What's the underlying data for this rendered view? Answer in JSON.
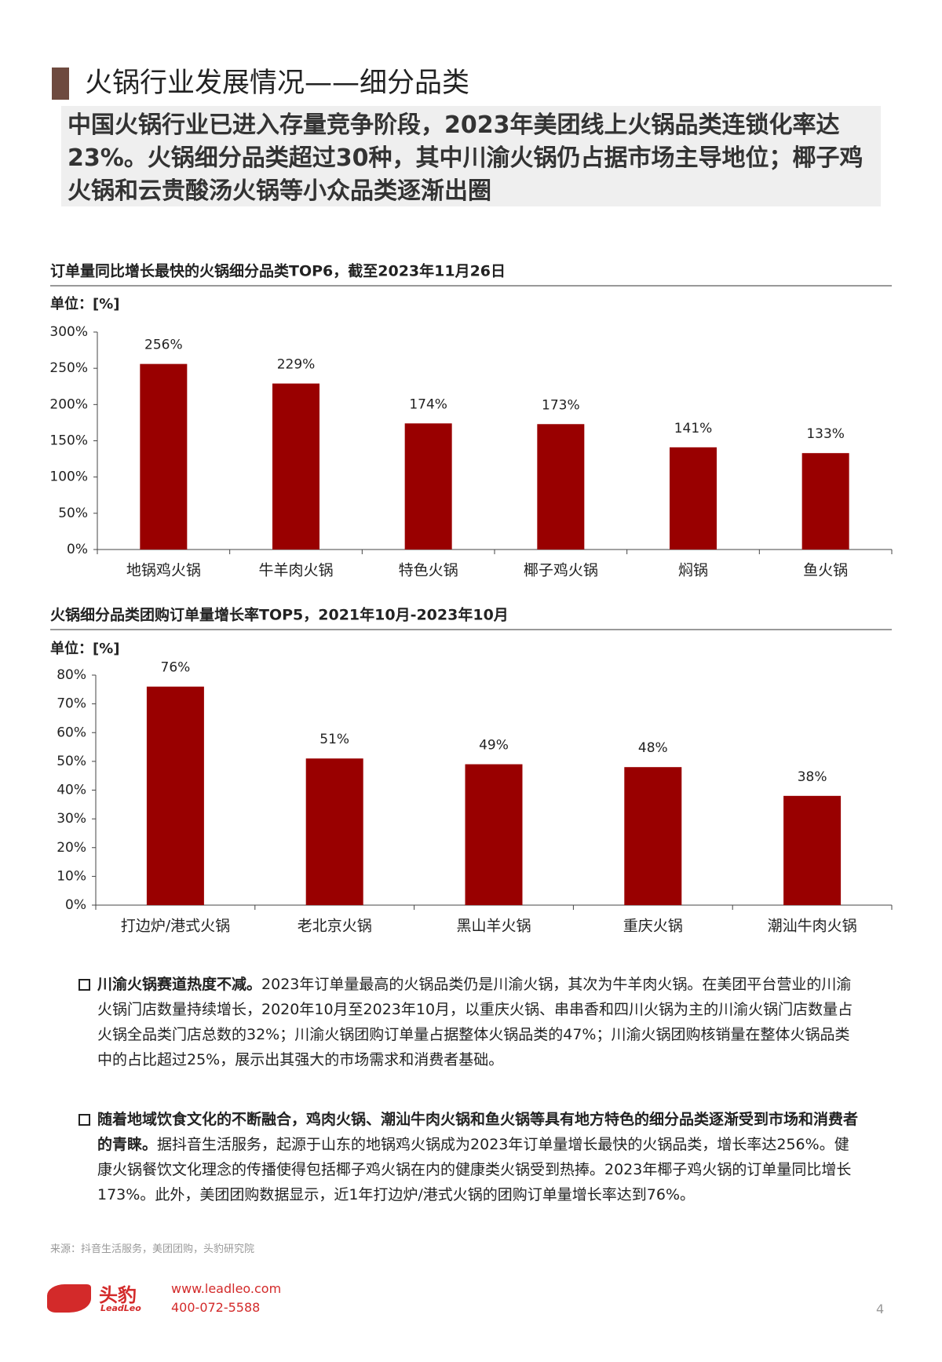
{
  "title": "火锅行业发展情况——细分品类",
  "subtitle": "中国火锅行业已进入存量竞争阶段，2023年美团线上火锅品类连锁化率达23%。火锅细分品类超过30种，其中川渝火锅仍占据市场主导地位；椰子鸡火锅和云贵酸汤火锅等小众品类逐渐出圈",
  "chart_data": [
    {
      "type": "bar",
      "title": "订单量同比增长最快的火锅细分品类TOP6，截至2023年11月26日",
      "unit_label": "单位：[%]",
      "categories": [
        "地锅鸡火锅",
        "牛羊肉火锅",
        "特色火锅",
        "椰子鸡火锅",
        "焖锅",
        "鱼火锅"
      ],
      "values": [
        256,
        229,
        174,
        173,
        141,
        133
      ],
      "value_labels": [
        "256%",
        "229%",
        "174%",
        "173%",
        "141%",
        "133%"
      ],
      "color": "#990000",
      "ylim": [
        0,
        300
      ],
      "yticks": [
        {
          "value": 0,
          "label": "0%"
        },
        {
          "value": 50,
          "label": "50%"
        },
        {
          "value": 100,
          "label": "100%"
        },
        {
          "value": 150,
          "label": "150%"
        },
        {
          "value": 200,
          "label": "200%"
        },
        {
          "value": 250,
          "label": "250%"
        },
        {
          "value": 300,
          "label": "300%"
        }
      ]
    },
    {
      "type": "bar",
      "title": "火锅细分品类团购订单量增长率TOP5，2021年10月-2023年10月",
      "unit_label": "单位：[%]",
      "categories": [
        "打边炉/港式火锅",
        "老北京火锅",
        "黑山羊火锅",
        "重庆火锅",
        "潮汕牛肉火锅"
      ],
      "values": [
        76,
        51,
        49,
        48,
        38
      ],
      "value_labels": [
        "76%",
        "51%",
        "49%",
        "48%",
        "38%"
      ],
      "color": "#990000",
      "ylim": [
        0,
        80
      ],
      "yticks": [
        {
          "value": 0,
          "label": "0%"
        },
        {
          "value": 10,
          "label": "10%"
        },
        {
          "value": 20,
          "label": "20%"
        },
        {
          "value": 30,
          "label": "30%"
        },
        {
          "value": 40,
          "label": "40%"
        },
        {
          "value": 50,
          "label": "50%"
        },
        {
          "value": 60,
          "label": "60%"
        },
        {
          "value": 70,
          "label": "70%"
        },
        {
          "value": 80,
          "label": "80%"
        }
      ]
    }
  ],
  "bullets": [
    {
      "bold": "川渝火锅赛道热度不减。",
      "text": "2023年订单量最高的火锅品类仍是川渝火锅，其次为牛羊肉火锅。在美团平台营业的川渝火锅门店数量持续增长，2020年10月至2023年10月，以重庆火锅、串串香和四川火锅为主的川渝火锅门店数量占火锅全品类门店总数的32%；川渝火锅团购订单量占据整体火锅品类的47%；川渝火锅团购核销量在整体火锅品类中的占比超过25%，展示出其强大的市场需求和消费者基础。"
    },
    {
      "bold": "随着地域饮食文化的不断融合，鸡肉火锅、潮汕牛肉火锅和鱼火锅等具有地方特色的细分品类逐渐受到市场和消费者的青睐。",
      "text": "据抖音生活服务，起源于山东的地锅鸡火锅成为2023年订单量增长最快的火锅品类，增长率达256%。健康火锅餐饮文化理念的传播使得包括椰子鸡火锅在内的健康类火锅受到热捧。2023年椰子鸡火锅的订单量同比增长173%。此外，美团团购数据显示，近1年打边炉/港式火锅的团购订单量增长率达到76%。"
    }
  ],
  "source": "来源：抖音生活服务，美团团购，头豹研究院",
  "footer": {
    "brand": "头豹",
    "brand_en": "LeadLeo",
    "website": "www.leadleo.com",
    "phone": "400-072-5588",
    "page": "4"
  }
}
